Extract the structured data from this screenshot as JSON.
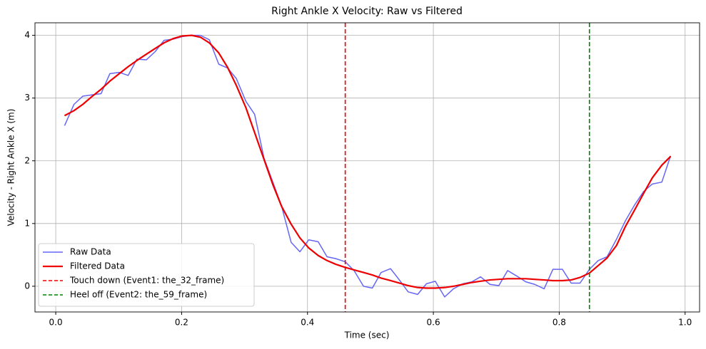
{
  "chart_data": {
    "type": "line",
    "title": "Right Ankle X Velocity: Raw vs Filtered",
    "xlabel": "Time (sec)",
    "ylabel": "Velocity  - Right Ankle X (m)",
    "x": [
      0.014,
      0.029,
      0.043,
      0.057,
      0.072,
      0.086,
      0.101,
      0.115,
      0.129,
      0.144,
      0.158,
      0.172,
      0.187,
      0.201,
      0.216,
      0.23,
      0.244,
      0.259,
      0.273,
      0.287,
      0.302,
      0.316,
      0.331,
      0.345,
      0.359,
      0.374,
      0.388,
      0.402,
      0.417,
      0.431,
      0.445,
      0.46,
      0.474,
      0.489,
      0.503,
      0.517,
      0.532,
      0.546,
      0.56,
      0.575,
      0.589,
      0.603,
      0.618,
      0.632,
      0.647,
      0.661,
      0.675,
      0.69,
      0.704,
      0.718,
      0.733,
      0.747,
      0.761,
      0.776,
      0.79,
      0.805,
      0.819,
      0.833,
      0.848,
      0.862,
      0.876,
      0.891,
      0.905,
      0.92,
      0.934,
      0.948,
      0.963,
      0.977
    ],
    "series": [
      {
        "name": "Raw Data",
        "color": "#6666f5",
        "width": 1.5,
        "values": [
          2.56,
          2.9,
          3.03,
          3.05,
          3.07,
          3.39,
          3.41,
          3.36,
          3.62,
          3.61,
          3.74,
          3.92,
          3.94,
          3.98,
          4.0,
          4.0,
          3.93,
          3.54,
          3.48,
          3.31,
          2.95,
          2.74,
          2.04,
          1.66,
          1.27,
          0.7,
          0.55,
          0.74,
          0.71,
          0.47,
          0.44,
          0.39,
          0.25,
          0.0,
          -0.03,
          0.22,
          0.28,
          0.1,
          -0.09,
          -0.13,
          0.04,
          0.08,
          -0.17,
          -0.04,
          0.04,
          0.07,
          0.15,
          0.03,
          0.01,
          0.25,
          0.16,
          0.07,
          0.03,
          -0.04,
          0.27,
          0.27,
          0.05,
          0.05,
          0.27,
          0.41,
          0.47,
          0.75,
          1.04,
          1.3,
          1.51,
          1.63,
          1.66,
          2.08
        ]
      },
      {
        "name": "Filtered Data",
        "color": "#ee0000",
        "width": 2.2,
        "values": [
          2.72,
          2.8,
          2.9,
          3.02,
          3.14,
          3.27,
          3.39,
          3.5,
          3.6,
          3.7,
          3.79,
          3.88,
          3.95,
          3.99,
          4.0,
          3.97,
          3.88,
          3.72,
          3.49,
          3.2,
          2.85,
          2.45,
          2.02,
          1.62,
          1.27,
          0.99,
          0.77,
          0.61,
          0.49,
          0.41,
          0.35,
          0.3,
          0.26,
          0.22,
          0.18,
          0.13,
          0.09,
          0.05,
          0.01,
          -0.02,
          -0.03,
          -0.03,
          -0.02,
          0.0,
          0.03,
          0.06,
          0.08,
          0.1,
          0.11,
          0.12,
          0.12,
          0.12,
          0.11,
          0.1,
          0.09,
          0.09,
          0.1,
          0.14,
          0.21,
          0.33,
          0.45,
          0.65,
          0.95,
          1.22,
          1.48,
          1.73,
          1.93,
          2.07
        ]
      }
    ],
    "vlines": [
      {
        "name": "Touch down (Event1: the_32_frame)",
        "x": 0.46,
        "color": "#ee0000"
      },
      {
        "name": "Heel off (Event2: the_59_frame)",
        "x": 0.848,
        "color": "#008000"
      }
    ],
    "xlim": [
      -0.033,
      1.023
    ],
    "ylim": [
      -0.41,
      4.2
    ],
    "xticks": [
      {
        "value": 0,
        "label": "0.0"
      },
      {
        "value": 0.2,
        "label": "0.2"
      },
      {
        "value": 0.4,
        "label": "0.4"
      },
      {
        "value": 0.6,
        "label": "0.6"
      },
      {
        "value": 0.8,
        "label": "0.8"
      },
      {
        "value": 1,
        "label": "1.0"
      }
    ],
    "yticks": [
      0,
      1,
      2,
      3,
      4
    ],
    "grid": true,
    "legend": "lower left"
  }
}
